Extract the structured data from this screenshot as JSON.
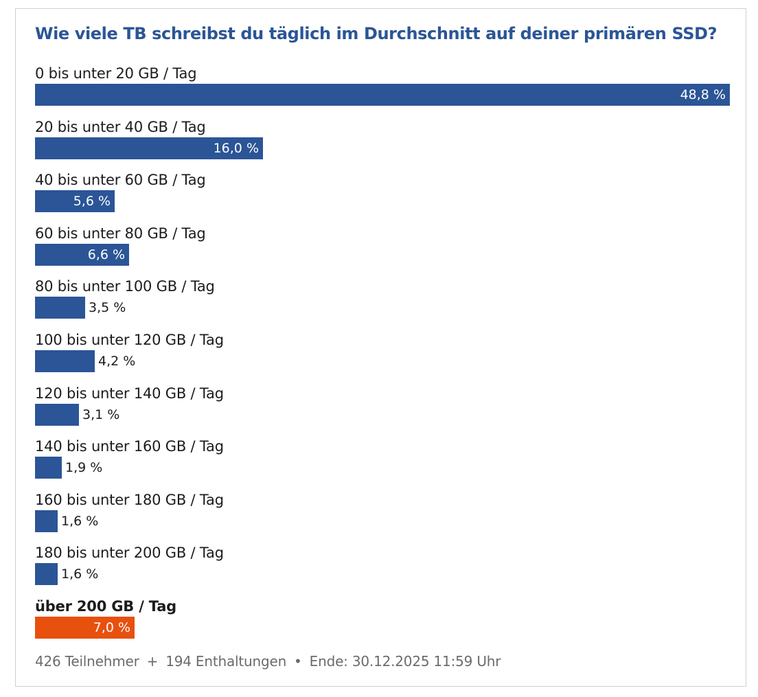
{
  "chart_data": {
    "type": "bar",
    "title": "Wie viele TB schreibst du täglich im Durchschnitt auf deiner primären SSD?",
    "unit": "%",
    "categories": [
      "0 bis unter 20 GB / Tag",
      "20 bis unter 40 GB / Tag",
      "40 bis unter 60 GB / Tag",
      "60 bis unter 80 GB / Tag",
      "80 bis unter 100 GB / Tag",
      "100 bis unter 120 GB / Tag",
      "120 bis unter 140 GB / Tag",
      "140 bis unter 160 GB / Tag",
      "160 bis unter 180 GB / Tag",
      "180 bis unter 200 GB / Tag",
      "über 200 GB / Tag"
    ],
    "values": [
      48.8,
      16.0,
      5.6,
      6.6,
      3.5,
      4.2,
      3.1,
      1.9,
      1.6,
      1.6,
      7.0
    ],
    "value_labels": [
      "48,8 %",
      "16,0 %",
      "5,6 %",
      "6,6 %",
      "3,5 %",
      "4,2 %",
      "3,1 %",
      "1,9 %",
      "1,6 %",
      "1,6 %",
      "7,0 %"
    ],
    "highlighted_index": 10,
    "orientation": "horizontal"
  },
  "colors": {
    "bar": "#2b5596",
    "highlight": "#e8500e",
    "title": "#2b5596"
  },
  "footer": {
    "participants": "426 Teilnehmer",
    "plus": "+",
    "abstentions": "194 Enthaltungen",
    "bullet": "•",
    "end": "Ende: 30.12.2025 11:59 Uhr"
  }
}
